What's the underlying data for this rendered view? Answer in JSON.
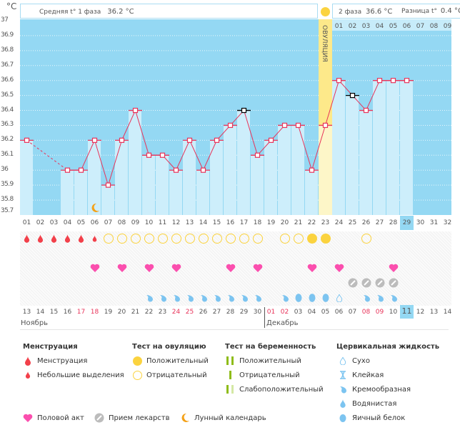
{
  "chart_data": {
    "type": "line",
    "title": "",
    "ylabel": "°C",
    "ylim": [
      35.7,
      37.0
    ],
    "yticks": [
      "37",
      "36.9",
      "36.8",
      "36.7",
      "36.6",
      "36.5",
      "36.4",
      "36.3",
      "36.2",
      "36.1",
      "36",
      "35.9",
      "35.8",
      "35.7"
    ],
    "x": [
      "01",
      "02",
      "03",
      "04",
      "05",
      "06",
      "07",
      "08",
      "09",
      "10",
      "11",
      "12",
      "13",
      "14",
      "15",
      "16",
      "17",
      "18",
      "19",
      "20",
      "21",
      "22",
      "23",
      "24",
      "25",
      "26",
      "27",
      "28",
      "29",
      "30",
      "31",
      "32"
    ],
    "series": [
      {
        "name": "Температура",
        "values": [
          36.2,
          null,
          null,
          36.0,
          36.0,
          36.2,
          35.9,
          36.2,
          36.4,
          36.1,
          36.1,
          36.0,
          36.2,
          36.0,
          36.2,
          36.3,
          36.4,
          36.1,
          36.2,
          36.3,
          36.3,
          36.0,
          36.3,
          36.6,
          36.5,
          36.4,
          36.6,
          36.6,
          36.6,
          null,
          null,
          null
        ]
      }
    ],
    "excluded_days": [
      "17",
      "25"
    ],
    "ovulation_day": "23",
    "today_cycle_day": "29",
    "coverline": 36.3
  },
  "header": {
    "unit": "°C",
    "phase1_label": "Средняя t° 1 фаза",
    "phase1_value": "36.2 °C",
    "phase2_label": "2 фаза",
    "phase2_value": "36.6 °C",
    "diff_label": "Разница t°",
    "diff_value": "0.4 °C",
    "ovulation_label": "ОВУЛЯЦИЯ",
    "next_cycle_days": [
      "01",
      "02",
      "03",
      "04",
      "05",
      "06",
      "07",
      "08",
      "09"
    ]
  },
  "rows": {
    "menstruation": [
      "big",
      "big",
      "big",
      "big",
      "big",
      "small",
      "",
      "",
      "",
      "",
      "",
      "",
      "",
      "",
      "",
      "",
      "",
      "",
      "",
      "",
      "",
      "",
      "",
      "",
      "",
      "",
      "",
      "",
      "",
      "",
      "",
      ""
    ],
    "ovulation_test": [
      "",
      "",
      "",
      "",
      "",
      "",
      "neg",
      "neg",
      "neg",
      "neg",
      "neg",
      "neg",
      "neg",
      "neg",
      "neg",
      "neg",
      "neg",
      "neg",
      "",
      "neg",
      "neg",
      "pos",
      "pos",
      "",
      "",
      "neg",
      "",
      "",
      "",
      "",
      "",
      ""
    ],
    "intercourse": [
      "",
      "",
      "",
      "",
      "",
      "1",
      "",
      "1",
      "",
      "1",
      "",
      "1",
      "",
      "",
      "",
      "1",
      "",
      "1",
      "",
      "",
      "",
      "1",
      "",
      "1",
      "",
      "",
      "",
      "1",
      "",
      "",
      "",
      ""
    ],
    "medication": [
      "",
      "",
      "",
      "",
      "",
      "",
      "",
      "",
      "",
      "",
      "",
      "",
      "",
      "",
      "",
      "",
      "",
      "",
      "",
      "",
      "",
      "",
      "",
      "",
      "1",
      "1",
      "1",
      "1",
      "",
      "",
      "",
      ""
    ],
    "fluid": [
      "",
      "",
      "",
      "",
      "",
      "",
      "",
      "",
      "",
      "creamy",
      "creamy",
      "creamy",
      "creamy",
      "creamy",
      "creamy",
      "creamy",
      "creamy",
      "creamy",
      "",
      "creamy",
      "egg",
      "egg",
      "egg",
      "dry",
      "",
      "creamy",
      "creamy",
      "creamy",
      "",
      "",
      "",
      ""
    ]
  },
  "dates": [
    "13",
    "14",
    "15",
    "16",
    "17",
    "18",
    "19",
    "20",
    "21",
    "22",
    "23",
    "24",
    "25",
    "26",
    "27",
    "28",
    "29",
    "30",
    "01",
    "02",
    "03",
    "04",
    "05",
    "06",
    "07",
    "08",
    "09",
    "10",
    "11",
    "12",
    "13",
    "14"
  ],
  "weekend_dates_idx": [
    4,
    5,
    11,
    12,
    18,
    19,
    25,
    26
  ],
  "today_date_idx": 28,
  "months": {
    "first": "Ноябрь",
    "second": "Декабрь"
  },
  "legend": {
    "menstruation": {
      "title": "Менструация",
      "items": [
        "Менструация",
        "Небольшие выделения"
      ]
    },
    "ovulation_test": {
      "title": "Тест на овуляцию",
      "items": [
        "Положительный",
        "Отрицательный"
      ]
    },
    "pregnancy_test": {
      "title": "Тест на беременность",
      "items": [
        "Положительный",
        "Отрицательный",
        "Слабоположительный"
      ]
    },
    "fluid": {
      "title": "Цервикальная жидкость",
      "items": [
        "Сухо",
        "Клейкая",
        "Кремообразная",
        "Водянистая",
        "Яичный белок"
      ]
    },
    "other": [
      "Половой акт",
      "Прием лекарств",
      "Лунный календарь"
    ]
  },
  "colors": {
    "plot_bg": "#94d8f3",
    "bar": "#cdeefb",
    "line": "#e8345a",
    "ovulation": "#fde98a",
    "menstruation": "#f2404a",
    "ovu_test": "#fbd33f",
    "heart": "#fb4fae",
    "pill": "#bcbcbc",
    "fluid": "#7cc4f0",
    "preg": "#8fbc1a",
    "moon": "#f4a117"
  }
}
